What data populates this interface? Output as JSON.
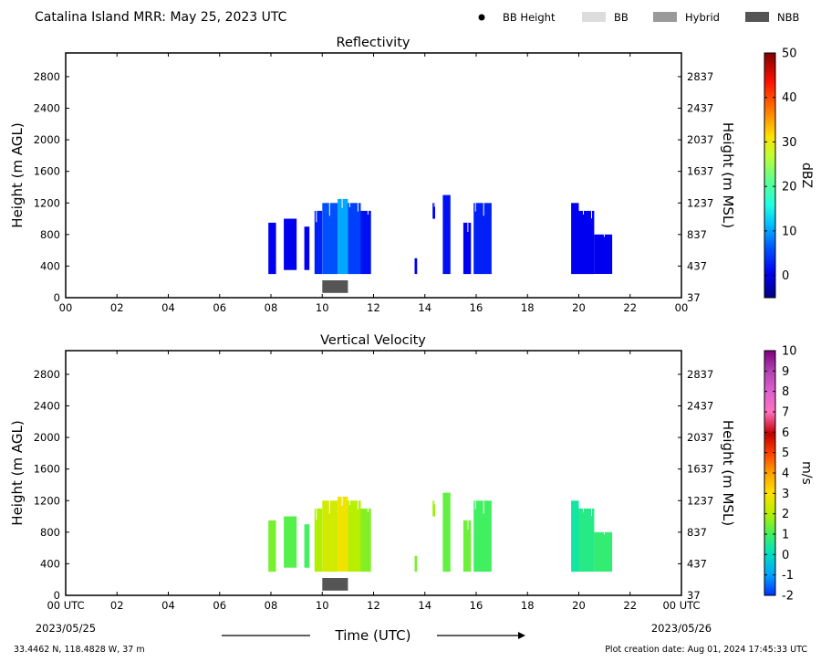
{
  "header": {
    "title": "Catalina Island MRR:  May 25, 2023 UTC",
    "legend": [
      {
        "label": "BB Height",
        "kind": "dot",
        "color": "#000000"
      },
      {
        "label": "BB",
        "kind": "box",
        "color": "#dcdcdc"
      },
      {
        "label": "Hybrid",
        "kind": "box",
        "color": "#9a9a9a"
      },
      {
        "label": "NBB",
        "kind": "box",
        "color": "#555555"
      }
    ]
  },
  "footer": {
    "location": "33.4462 N, 118.4828 W, 37 m",
    "creation": "Plot creation date: Aug 01, 2024 17:45:33 UTC",
    "xlabel": "Time (UTC)",
    "start_date": "2023/05/25",
    "end_date": "2023/05/26"
  },
  "panels": [
    {
      "title": "Reflectivity",
      "ylabel": "Height (m AGL)",
      "y2label": "Height (m MSL)",
      "cbar_label": "dBZ"
    },
    {
      "title": "Vertical Velocity",
      "ylabel": "Height (m AGL)",
      "y2label": "Height (m MSL)",
      "cbar_label": "m/s"
    }
  ],
  "chart_data": [
    {
      "type": "heatmap",
      "title": "Reflectivity",
      "xlabel": "Time (UTC)",
      "ylabel": "Height (m AGL)",
      "y2label": "Height (m MSL)",
      "xlim": [
        0,
        24
      ],
      "ylim": [
        0,
        3100
      ],
      "xticks": [
        "00",
        "02",
        "04",
        "06",
        "08",
        "10",
        "12",
        "14",
        "16",
        "18",
        "20",
        "22",
        "00"
      ],
      "yticks": [
        0,
        400,
        800,
        1200,
        1600,
        2000,
        2400,
        2800
      ],
      "y2ticks": [
        37,
        437,
        837,
        1237,
        1637,
        2037,
        2437,
        2837
      ],
      "colorbar": {
        "label": "dBZ",
        "min": -5,
        "max": 50,
        "ticks": [
          0,
          10,
          20,
          30,
          40,
          50
        ]
      },
      "echo_segments": [
        {
          "t_start": 7.9,
          "t_end": 8.2,
          "h_low": 300,
          "h_high": 950,
          "value": 0
        },
        {
          "t_start": 8.5,
          "t_end": 9.0,
          "h_low": 350,
          "h_high": 1000,
          "value": 0
        },
        {
          "t_start": 9.3,
          "t_end": 9.5,
          "h_low": 350,
          "h_high": 900,
          "value": 0
        },
        {
          "t_start": 9.7,
          "t_end": 10.0,
          "h_low": 300,
          "h_high": 1100,
          "value": 2
        },
        {
          "t_start": 10.0,
          "t_end": 10.6,
          "h_low": 300,
          "h_high": 1200,
          "value": 5
        },
        {
          "t_start": 10.6,
          "t_end": 11.0,
          "h_low": 300,
          "h_high": 1250,
          "value": 9
        },
        {
          "t_start": 11.0,
          "t_end": 11.5,
          "h_low": 300,
          "h_high": 1200,
          "value": 4
        },
        {
          "t_start": 11.5,
          "t_end": 11.9,
          "h_low": 300,
          "h_high": 1100,
          "value": 1
        },
        {
          "t_start": 13.6,
          "t_end": 13.7,
          "h_low": 300,
          "h_high": 500,
          "value": 0
        },
        {
          "t_start": 14.3,
          "t_end": 14.4,
          "h_low": 1000,
          "h_high": 1200,
          "value": 0
        },
        {
          "t_start": 14.7,
          "t_end": 15.0,
          "h_low": 300,
          "h_high": 1300,
          "value": 1
        },
        {
          "t_start": 15.5,
          "t_end": 15.8,
          "h_low": 300,
          "h_high": 950,
          "value": 0
        },
        {
          "t_start": 15.9,
          "t_end": 16.6,
          "h_low": 300,
          "h_high": 1200,
          "value": 2
        },
        {
          "t_start": 19.7,
          "t_end": 20.0,
          "h_low": 300,
          "h_high": 1200,
          "value": 0
        },
        {
          "t_start": 20.0,
          "t_end": 20.6,
          "h_low": 300,
          "h_high": 1100,
          "value": 0
        },
        {
          "t_start": 20.6,
          "t_end": 21.3,
          "h_low": 300,
          "h_high": 800,
          "value": 0
        }
      ],
      "bright_band": {
        "type": "NBB",
        "t_start": 10.0,
        "t_end": 11.0,
        "h_low": 60,
        "h_high": 220
      }
    },
    {
      "type": "heatmap",
      "title": "Vertical Velocity",
      "xlabel": "Time (UTC)",
      "ylabel": "Height (m AGL)",
      "y2label": "Height (m MSL)",
      "xlim": [
        0,
        24
      ],
      "ylim": [
        0,
        3100
      ],
      "xticks": [
        "00 UTC",
        "02",
        "04",
        "06",
        "08",
        "10",
        "12",
        "14",
        "16",
        "18",
        "20",
        "22",
        "00 UTC"
      ],
      "yticks": [
        0,
        400,
        800,
        1200,
        1600,
        2000,
        2400,
        2800
      ],
      "y2ticks": [
        37,
        437,
        837,
        1237,
        1637,
        2037,
        2437,
        2837
      ],
      "colorbar": {
        "label": "m/s",
        "min": -2,
        "max": 10,
        "ticks": [
          -2,
          -1,
          0,
          1,
          2,
          3,
          4,
          5,
          6,
          7,
          8,
          9,
          10
        ]
      },
      "echo_segments": [
        {
          "t_start": 7.9,
          "t_end": 8.2,
          "h_low": 300,
          "h_high": 950,
          "value": 1.5
        },
        {
          "t_start": 8.5,
          "t_end": 9.0,
          "h_low": 350,
          "h_high": 1000,
          "value": 1.2
        },
        {
          "t_start": 9.3,
          "t_end": 9.5,
          "h_low": 350,
          "h_high": 900,
          "value": 1.0
        },
        {
          "t_start": 9.7,
          "t_end": 10.0,
          "h_low": 300,
          "h_high": 1100,
          "value": 2.0
        },
        {
          "t_start": 10.0,
          "t_end": 10.6,
          "h_low": 300,
          "h_high": 1200,
          "value": 2.4
        },
        {
          "t_start": 10.6,
          "t_end": 11.0,
          "h_low": 300,
          "h_high": 1250,
          "value": 2.8
        },
        {
          "t_start": 11.0,
          "t_end": 11.5,
          "h_low": 300,
          "h_high": 1200,
          "value": 2.1
        },
        {
          "t_start": 11.5,
          "t_end": 11.9,
          "h_low": 300,
          "h_high": 1100,
          "value": 1.6
        },
        {
          "t_start": 13.6,
          "t_end": 13.7,
          "h_low": 300,
          "h_high": 500,
          "value": 1.5
        },
        {
          "t_start": 14.3,
          "t_end": 14.4,
          "h_low": 1000,
          "h_high": 1200,
          "value": 1.8
        },
        {
          "t_start": 14.7,
          "t_end": 15.0,
          "h_low": 300,
          "h_high": 1300,
          "value": 1.3
        },
        {
          "t_start": 15.5,
          "t_end": 15.8,
          "h_low": 300,
          "h_high": 950,
          "value": 1.4
        },
        {
          "t_start": 15.9,
          "t_end": 16.6,
          "h_low": 300,
          "h_high": 1200,
          "value": 1.0
        },
        {
          "t_start": 19.7,
          "t_end": 20.0,
          "h_low": 300,
          "h_high": 1200,
          "value": 0.3
        },
        {
          "t_start": 20.0,
          "t_end": 20.6,
          "h_low": 300,
          "h_high": 1100,
          "value": 0.6
        },
        {
          "t_start": 20.6,
          "t_end": 21.3,
          "h_low": 300,
          "h_high": 800,
          "value": 0.8
        }
      ],
      "bright_band": {
        "type": "NBB",
        "t_start": 10.0,
        "t_end": 11.0,
        "h_low": 60,
        "h_high": 220
      }
    }
  ]
}
